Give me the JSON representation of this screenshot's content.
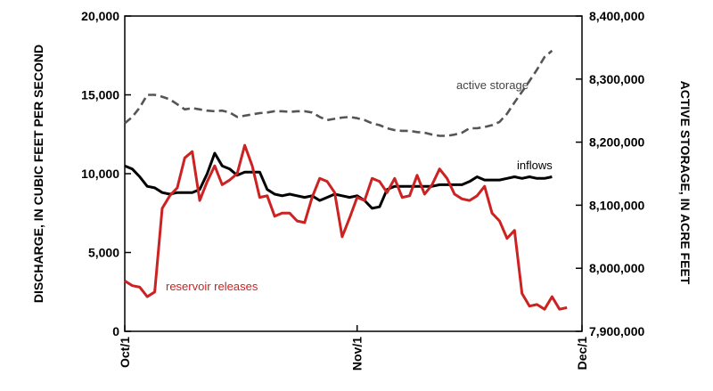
{
  "chart_data": {
    "type": "line",
    "title": "",
    "ylabel": "DISCHARGE, IN CUBIC FEET PER SECOND",
    "y2label": "ACTIVE STORAGE, IN ACRE FEET",
    "ylim": [
      0,
      20000
    ],
    "y2lim": [
      7900000,
      8400000
    ],
    "xlim": [
      0,
      61
    ],
    "grid": false,
    "x_ticks": [
      {
        "x": 0,
        "label": "Oct/1"
      },
      {
        "x": 31,
        "label": "Nov/1"
      },
      {
        "x": 61,
        "label": "Dec/1"
      }
    ],
    "y_ticks": [
      {
        "value": 0,
        "label": "0"
      },
      {
        "value": 5000,
        "label": "5,000"
      },
      {
        "value": 10000,
        "label": "10,000"
      },
      {
        "value": 15000,
        "label": "15,000"
      },
      {
        "value": 20000,
        "label": "20,000"
      }
    ],
    "y2_ticks": [
      {
        "value": 7900000,
        "label": "7,900,000"
      },
      {
        "value": 8000000,
        "label": "8,000,000"
      },
      {
        "value": 8100000,
        "label": "8,100,000"
      },
      {
        "value": 8200000,
        "label": "8,200,000"
      },
      {
        "value": 8300000,
        "label": "8,300,000"
      },
      {
        "value": 8400000,
        "label": "8,400,000"
      }
    ],
    "series": [
      {
        "name": "active storage",
        "axis": "right",
        "color": "#555555",
        "dash": true,
        "label_at": 42,
        "points": [
          [
            0,
            8230000
          ],
          [
            1,
            8240000
          ],
          [
            2,
            8255000
          ],
          [
            3,
            8275000
          ],
          [
            4,
            8275000
          ],
          [
            5,
            8272000
          ],
          [
            6,
            8268000
          ],
          [
            7,
            8260000
          ],
          [
            8,
            8252000
          ],
          [
            9,
            8254000
          ],
          [
            10,
            8252000
          ],
          [
            11,
            8250000
          ],
          [
            12,
            8249000
          ],
          [
            13,
            8250000
          ],
          [
            14,
            8247000
          ],
          [
            15,
            8240000
          ],
          [
            16,
            8242000
          ],
          [
            17,
            8244000
          ],
          [
            18,
            8246000
          ],
          [
            19,
            8247000
          ],
          [
            20,
            8249000
          ],
          [
            21,
            8249000
          ],
          [
            22,
            8248000
          ],
          [
            23,
            8249000
          ],
          [
            24,
            8249000
          ],
          [
            25,
            8247000
          ],
          [
            26,
            8240000
          ],
          [
            27,
            8235000
          ],
          [
            28,
            8237000
          ],
          [
            29,
            8239000
          ],
          [
            30,
            8240000
          ],
          [
            31,
            8238000
          ],
          [
            32,
            8235000
          ],
          [
            33,
            8230000
          ],
          [
            34,
            8227000
          ],
          [
            35,
            8222000
          ],
          [
            36,
            8219000
          ],
          [
            37,
            8218000
          ],
          [
            38,
            8218000
          ],
          [
            39,
            8216000
          ],
          [
            40,
            8215000
          ],
          [
            41,
            8212000
          ],
          [
            42,
            8210000
          ],
          [
            43,
            8210000
          ],
          [
            44,
            8212000
          ],
          [
            45,
            8215000
          ],
          [
            46,
            8222000
          ],
          [
            47,
            8222000
          ],
          [
            48,
            8224000
          ],
          [
            49,
            8227000
          ],
          [
            50,
            8232000
          ],
          [
            51,
            8245000
          ],
          [
            52,
            8263000
          ],
          [
            53,
            8280000
          ],
          [
            54,
            8297000
          ],
          [
            55,
            8315000
          ],
          [
            56,
            8335000
          ],
          [
            57,
            8345000
          ]
        ]
      },
      {
        "name": "inflows",
        "axis": "left",
        "color": "#000000",
        "dash": false,
        "label_at": 51,
        "points": [
          [
            0,
            10500
          ],
          [
            1,
            10300
          ],
          [
            2,
            9800
          ],
          [
            3,
            9200
          ],
          [
            4,
            9100
          ],
          [
            5,
            8800
          ],
          [
            6,
            8700
          ],
          [
            7,
            8800
          ],
          [
            8,
            8800
          ],
          [
            9,
            8800
          ],
          [
            10,
            9000
          ],
          [
            11,
            10000
          ],
          [
            12,
            11300
          ],
          [
            13,
            10500
          ],
          [
            14,
            10300
          ],
          [
            15,
            9900
          ],
          [
            16,
            10100
          ],
          [
            17,
            10100
          ],
          [
            18,
            10100
          ],
          [
            19,
            9000
          ],
          [
            20,
            8700
          ],
          [
            21,
            8600
          ],
          [
            22,
            8700
          ],
          [
            23,
            8600
          ],
          [
            24,
            8500
          ],
          [
            25,
            8600
          ],
          [
            26,
            8300
          ],
          [
            27,
            8500
          ],
          [
            28,
            8700
          ],
          [
            29,
            8600
          ],
          [
            30,
            8500
          ],
          [
            31,
            8600
          ],
          [
            32,
            8300
          ],
          [
            33,
            7800
          ],
          [
            34,
            7900
          ],
          [
            35,
            9000
          ],
          [
            36,
            9200
          ],
          [
            37,
            9200
          ],
          [
            38,
            9200
          ],
          [
            39,
            9200
          ],
          [
            40,
            9200
          ],
          [
            41,
            9200
          ],
          [
            42,
            9300
          ],
          [
            43,
            9300
          ],
          [
            44,
            9300
          ],
          [
            45,
            9300
          ],
          [
            46,
            9500
          ],
          [
            47,
            9800
          ],
          [
            48,
            9600
          ],
          [
            49,
            9600
          ],
          [
            50,
            9600
          ],
          [
            51,
            9700
          ],
          [
            52,
            9800
          ],
          [
            53,
            9700
          ],
          [
            54,
            9800
          ],
          [
            55,
            9700
          ],
          [
            56,
            9700
          ],
          [
            57,
            9800
          ]
        ]
      },
      {
        "name": "reservoir releases",
        "axis": "left",
        "color": "#cc2222",
        "dash": false,
        "label_at": 6,
        "points": [
          [
            0,
            3200
          ],
          [
            1,
            2900
          ],
          [
            2,
            2800
          ],
          [
            3,
            2200
          ],
          [
            4,
            2500
          ],
          [
            5,
            7800
          ],
          [
            6,
            8600
          ],
          [
            7,
            9100
          ],
          [
            8,
            11000
          ],
          [
            9,
            11400
          ],
          [
            10,
            8300
          ],
          [
            11,
            9500
          ],
          [
            12,
            10500
          ],
          [
            13,
            9300
          ],
          [
            14,
            9600
          ],
          [
            15,
            10000
          ],
          [
            16,
            11800
          ],
          [
            17,
            10500
          ],
          [
            18,
            8500
          ],
          [
            19,
            8600
          ],
          [
            20,
            7300
          ],
          [
            21,
            7500
          ],
          [
            22,
            7500
          ],
          [
            23,
            7000
          ],
          [
            24,
            6900
          ],
          [
            25,
            8500
          ],
          [
            26,
            9700
          ],
          [
            27,
            9500
          ],
          [
            28,
            8800
          ],
          [
            29,
            6000
          ],
          [
            30,
            7200
          ],
          [
            31,
            8500
          ],
          [
            32,
            8300
          ],
          [
            33,
            9700
          ],
          [
            34,
            9500
          ],
          [
            35,
            8800
          ],
          [
            36,
            9700
          ],
          [
            37,
            8500
          ],
          [
            38,
            8600
          ],
          [
            39,
            9900
          ],
          [
            40,
            8700
          ],
          [
            41,
            9300
          ],
          [
            42,
            10300
          ],
          [
            43,
            9700
          ],
          [
            44,
            8700
          ],
          [
            45,
            8400
          ],
          [
            46,
            8300
          ],
          [
            47,
            8600
          ],
          [
            48,
            9200
          ],
          [
            49,
            7500
          ],
          [
            50,
            7000
          ],
          [
            51,
            5900
          ],
          [
            52,
            6400
          ],
          [
            53,
            2400
          ],
          [
            54,
            1600
          ],
          [
            55,
            1700
          ],
          [
            56,
            1400
          ],
          [
            57,
            2200
          ],
          [
            58,
            1400
          ],
          [
            59,
            1500
          ]
        ]
      }
    ]
  }
}
